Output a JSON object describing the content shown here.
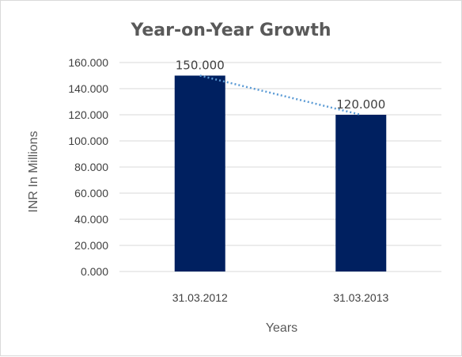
{
  "chart_data": {
    "type": "bar",
    "title": "Year-on-Year Growth",
    "xlabel": "Years",
    "ylabel": "INR In Millions",
    "categories": [
      "31.03.2012",
      "31.03.2013"
    ],
    "values": [
      150,
      120
    ],
    "value_labels": [
      "150.000",
      "120.000"
    ],
    "ylim": [
      0,
      160
    ],
    "y_ticks": [
      0,
      20,
      40,
      60,
      80,
      100,
      120,
      140,
      160
    ],
    "y_tick_labels": [
      "0.000",
      "20.000",
      "40.000",
      "60.000",
      "80.000",
      "100.000",
      "120.000",
      "140.000",
      "160.000"
    ],
    "grid": true,
    "trendline": "dotted line connecting bar tops",
    "colors": {
      "bar": "#002060",
      "trendline": "#5b9bd5",
      "grid": "#d9d9d9",
      "text": "#404040"
    }
  }
}
